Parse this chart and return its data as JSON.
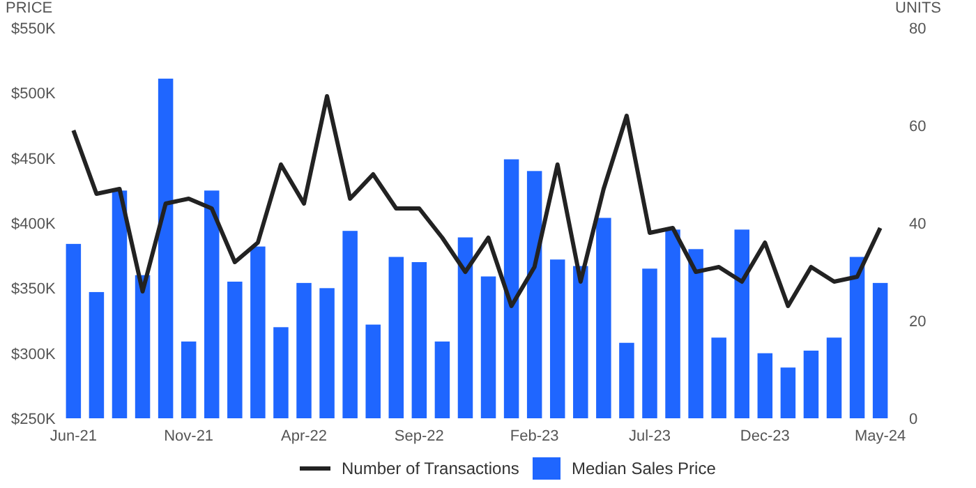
{
  "chart_data": {
    "type": "bar",
    "ylabel": "PRICE",
    "y2label": "UNITS",
    "categories": [
      "Jun-21",
      null,
      null,
      null,
      null,
      "Nov-21",
      null,
      null,
      null,
      null,
      "Apr-22",
      null,
      null,
      null,
      null,
      "Sep-22",
      null,
      null,
      null,
      null,
      "Feb-23",
      null,
      null,
      null,
      null,
      "Jul-23",
      null,
      null,
      null,
      null,
      "Dec-23",
      null,
      null,
      null,
      null,
      "May-24"
    ],
    "series": [
      {
        "name": "Number of Transactions",
        "type": "line",
        "axis": "y2",
        "color": "#222222",
        "values": [
          59,
          46,
          47,
          26,
          44,
          45,
          43,
          32,
          36,
          52,
          44,
          66,
          45,
          50,
          43,
          43,
          37,
          30,
          37,
          23,
          31,
          52,
          28,
          47,
          62,
          38,
          39,
          30,
          31,
          28,
          36,
          23,
          31,
          28,
          29,
          39
        ]
      },
      {
        "name": "Median Sales Price",
        "color": "#1f66ff",
        "values": [
          384,
          347,
          425,
          360,
          511,
          309,
          425,
          355,
          382,
          320,
          354,
          350,
          394,
          322,
          374,
          370,
          309,
          389,
          359,
          449,
          440,
          372,
          367,
          404,
          308,
          365,
          395,
          380,
          312,
          395,
          300,
          289,
          302,
          312,
          374,
          354
        ]
      }
    ],
    "ylim": [
      250,
      550
    ],
    "yticks": [
      {
        "value": 250,
        "label": "$250K"
      },
      {
        "value": 300,
        "label": "$300K"
      },
      {
        "value": 350,
        "label": "$350K"
      },
      {
        "value": 400,
        "label": "$400K"
      },
      {
        "value": 450,
        "label": "$450K"
      },
      {
        "value": 500,
        "label": "$500K"
      },
      {
        "value": 550,
        "label": "$550K"
      }
    ],
    "y2lim": [
      0,
      80
    ],
    "y2ticks": [
      0,
      20,
      40,
      60,
      80
    ],
    "legend": "bottom",
    "grid": false
  }
}
